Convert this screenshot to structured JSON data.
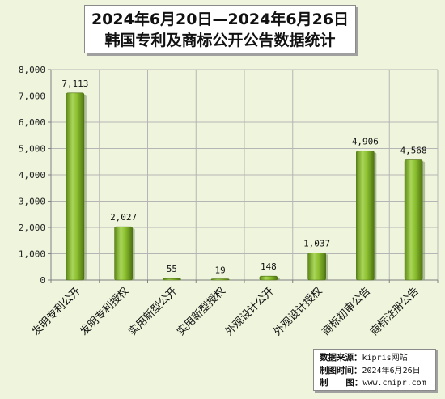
{
  "title": {
    "line1": "2024年6月20日—2024年6月26日",
    "line2": "韩国专利及商标公开公告数据统计"
  },
  "chart_data": {
    "type": "bar",
    "categories": [
      "发明专利公开",
      "发明专利授权",
      "实用新型公开",
      "实用新型授权",
      "外观设计公开",
      "外观设计授权",
      "商标初审公告",
      "商标注册公告"
    ],
    "values": [
      7113,
      2027,
      55,
      19,
      148,
      1037,
      4906,
      4568
    ],
    "value_labels": [
      "7,113",
      "2,027",
      "55",
      "19",
      "148",
      "1,037",
      "4,906",
      "4,568"
    ],
    "ylim": [
      0,
      8000
    ],
    "yticks": [
      0,
      1000,
      2000,
      3000,
      4000,
      5000,
      6000,
      7000,
      8000
    ],
    "ytick_labels": [
      "0",
      "1,000",
      "2,000",
      "3,000",
      "4,000",
      "5,000",
      "6,000",
      "7,000",
      "8,000"
    ],
    "grid": true,
    "bar_color": "#8cbf2f"
  },
  "source": {
    "source_label": "数据来源：",
    "source_value": "kipris网站",
    "time_label": "制图时间：",
    "time_value": "2024年6月26日",
    "maker_label": "制      图：",
    "maker_value": "www.cnipr.com"
  }
}
